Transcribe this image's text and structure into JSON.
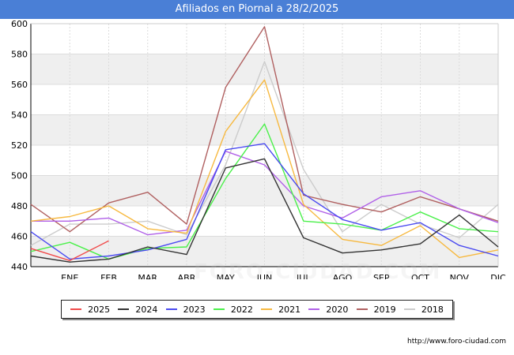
{
  "header": {
    "title": "Afiliados en Piornal a 28/2/2025"
  },
  "footer": {
    "url": "http://www.foro-ciudad.com"
  },
  "watermark": {
    "text": "FORO-CIUDAD.COM"
  },
  "colors": {
    "title_bg": "#4a7fd6",
    "band": "#efefef",
    "grid": "#dcdcdc"
  },
  "chart_data": {
    "type": "line",
    "title": "Afiliados en Piornal a 28/2/2025",
    "categories": [
      "",
      "ENE",
      "FEB",
      "MAR",
      "ABR",
      "MAY",
      "JUN",
      "JUL",
      "AGO",
      "SEP",
      "OCT",
      "NOV",
      "DIC"
    ],
    "ylim": [
      440,
      600
    ],
    "yticks": [
      440,
      460,
      480,
      500,
      520,
      540,
      560,
      580,
      600
    ],
    "legend_position": "bottom",
    "series": [
      {
        "name": "2025",
        "color": "#f04a4a",
        "values": [
          452,
          444,
          457,
          null,
          null,
          null,
          null,
          null,
          null,
          null,
          null,
          null,
          null
        ]
      },
      {
        "name": "2024",
        "color": "#333333",
        "values": [
          447,
          443,
          445,
          453,
          448,
          505,
          511,
          459,
          449,
          451,
          455,
          474,
          453
        ]
      },
      {
        "name": "2023",
        "color": "#4a4af0",
        "values": [
          463,
          445,
          447,
          451,
          458,
          517,
          521,
          488,
          471,
          464,
          469,
          454,
          447
        ]
      },
      {
        "name": "2022",
        "color": "#4af04a",
        "values": [
          450,
          456,
          445,
          452,
          453,
          498,
          534,
          470,
          468,
          464,
          476,
          465,
          463
        ]
      },
      {
        "name": "2021",
        "color": "#f7b940",
        "values": [
          470,
          473,
          480,
          465,
          462,
          529,
          563,
          481,
          458,
          454,
          467,
          446,
          451
        ]
      },
      {
        "name": "2020",
        "color": "#b060e8",
        "values": [
          470,
          470,
          472,
          461,
          464,
          516,
          507,
          480,
          472,
          486,
          490,
          478,
          469
        ]
      },
      {
        "name": "2019",
        "color": "#b06060",
        "values": [
          481,
          463,
          482,
          489,
          468,
          558,
          598,
          487,
          481,
          476,
          486,
          478,
          470
        ]
      },
      {
        "name": "2018",
        "color": "#cccccc",
        "values": [
          454,
          468,
          468,
          470,
          461,
          507,
          575,
          504,
          463,
          481,
          468,
          459,
          481
        ]
      }
    ]
  }
}
